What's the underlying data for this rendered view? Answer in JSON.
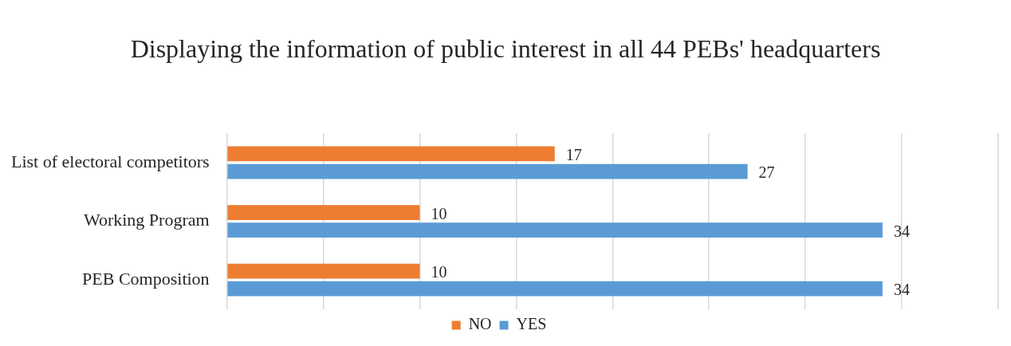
{
  "chart_data": {
    "type": "bar",
    "orientation": "horizontal",
    "title": "Displaying the information of public interest in all 44 PEBs' headquarters",
    "categories": [
      "List of electoral competitors",
      "Working Program",
      "PEB Composition"
    ],
    "series": [
      {
        "name": "NO",
        "color": "#ed7d31",
        "values": [
          17,
          10,
          10
        ]
      },
      {
        "name": "YES",
        "color": "#5b9bd5",
        "values": [
          27,
          34,
          34
        ]
      }
    ],
    "xlim": [
      0,
      40
    ],
    "xticks": [
      {
        "value": 0,
        "label": null
      },
      {
        "value": 5,
        "label": null
      },
      {
        "value": 10,
        "label": null
      },
      {
        "value": 15,
        "label": null
      },
      {
        "value": 20,
        "label": null
      },
      {
        "value": 25,
        "label": null
      },
      {
        "value": 30,
        "label": null
      },
      {
        "value": 35,
        "label": null
      },
      {
        "value": 40,
        "label": null
      }
    ],
    "tick_labels": "y",
    "grid": "x",
    "data_labels": true,
    "legend": "bottom"
  }
}
